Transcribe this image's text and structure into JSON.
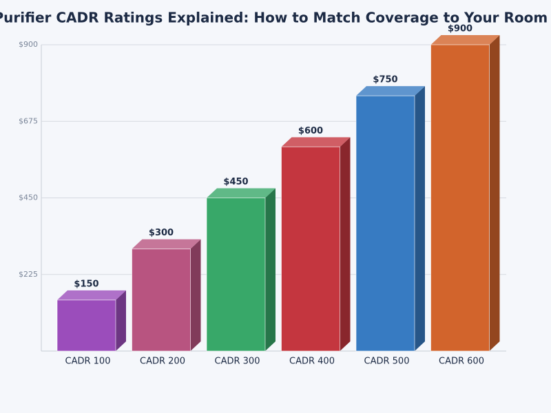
{
  "chart_data": {
    "type": "bar3d",
    "title": "Air Purifier CADR Ratings Explained: How to Match Coverage to Your Room Size",
    "categories": [
      "CADR 100",
      "CADR 200",
      "CADR 300",
      "CADR 400",
      "CADR 500",
      "CADR 600"
    ],
    "values": [
      150,
      300,
      450,
      600,
      750,
      900
    ],
    "value_labels": [
      "$150",
      "$300",
      "$450",
      "$600",
      "$750",
      "$900"
    ],
    "colors": [
      "#9b4dbb",
      "#b85480",
      "#38a869",
      "#c4363f",
      "#377bc2",
      "#d2642c"
    ],
    "ylim": [
      0,
      900
    ],
    "yticks": [
      {
        "value": 225,
        "label": "$225"
      },
      {
        "value": 450,
        "label": "$450"
      },
      {
        "value": 675,
        "label": "$675"
      },
      {
        "value": 900,
        "label": "$900"
      }
    ],
    "grid": true
  }
}
